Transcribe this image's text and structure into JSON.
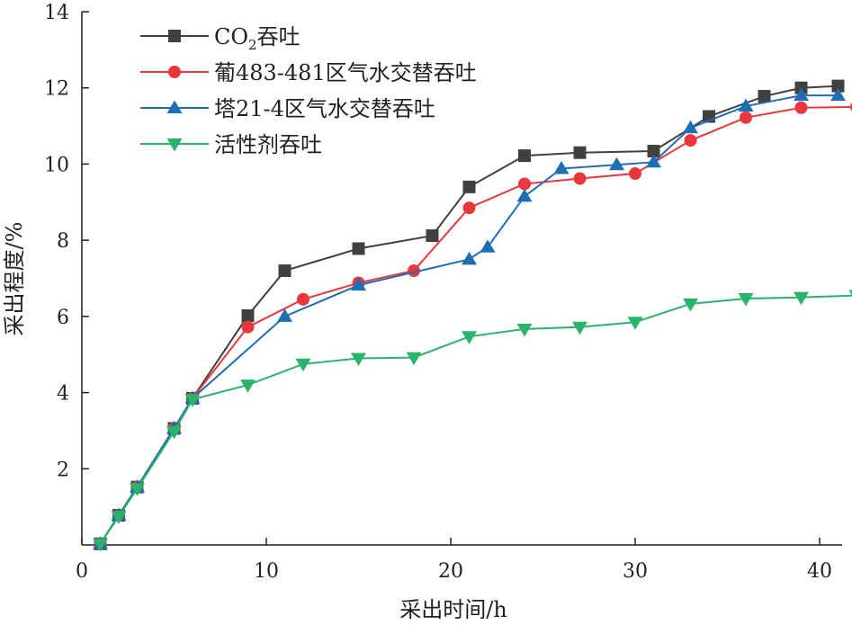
{
  "chart_data": {
    "type": "line",
    "xlabel": "采出时间/h",
    "ylabel": "采出程度/%",
    "xlim": [
      0,
      42
    ],
    "ylim": [
      0,
      14
    ],
    "xticks": [
      0,
      10,
      20,
      30,
      40
    ],
    "yticks": [
      2,
      4,
      6,
      8,
      10,
      12,
      14
    ],
    "x_tick_labels": [
      "0",
      "10",
      "20",
      "30",
      "40"
    ],
    "y_tick_labels": [
      "2",
      "4",
      "6",
      "8",
      "10",
      "12",
      "14"
    ],
    "grid": false,
    "legend_position": "top-left",
    "series": [
      {
        "name": "CO₂吞吐",
        "legend_parts": [
          "CO",
          "2",
          "吞吐"
        ],
        "color": "#404040",
        "marker": "square",
        "x": [
          1,
          2,
          3,
          5,
          6,
          9,
          11,
          15,
          19,
          21,
          24,
          27,
          31,
          34,
          37,
          39,
          41
        ],
        "y": [
          0.03,
          0.78,
          1.52,
          3.06,
          3.85,
          6.02,
          7.2,
          7.78,
          8.12,
          9.4,
          10.22,
          10.3,
          10.34,
          11.25,
          11.78,
          12.0,
          12.05
        ]
      },
      {
        "name": "葡483-481区气水交替吞吐",
        "color": "#e8383d",
        "marker": "circle",
        "x": [
          1,
          2,
          3,
          5,
          6,
          9,
          12,
          15,
          18,
          21,
          24,
          27,
          30,
          33,
          36,
          39,
          42
        ],
        "y": [
          0.03,
          0.78,
          1.52,
          3.06,
          3.85,
          5.72,
          6.45,
          6.88,
          7.2,
          8.85,
          9.48,
          9.62,
          9.75,
          10.62,
          11.22,
          11.48,
          11.5
        ]
      },
      {
        "name": "塔21-4区气水交替吞吐",
        "color": "#1f6db3",
        "marker": "triangle-up",
        "x": [
          1,
          2,
          3,
          5,
          6,
          11,
          15,
          21,
          22,
          24,
          26,
          29,
          31,
          33,
          36,
          39,
          41
        ],
        "y": [
          0.03,
          0.78,
          1.52,
          3.06,
          3.85,
          6.0,
          6.82,
          7.5,
          7.82,
          9.15,
          9.88,
          9.98,
          10.05,
          10.95,
          11.52,
          11.8,
          11.8
        ]
      },
      {
        "name": "活性剂吞吐",
        "color": "#2bb36b",
        "marker": "triangle-down",
        "x": [
          1,
          2,
          3,
          5,
          6,
          9,
          12,
          15,
          18,
          21,
          24,
          27,
          30,
          33,
          36,
          39,
          42
        ],
        "y": [
          0.03,
          0.75,
          1.48,
          2.98,
          3.82,
          4.2,
          4.75,
          4.9,
          4.92,
          5.47,
          5.67,
          5.72,
          5.85,
          6.33,
          6.47,
          6.5,
          6.55
        ]
      }
    ]
  }
}
